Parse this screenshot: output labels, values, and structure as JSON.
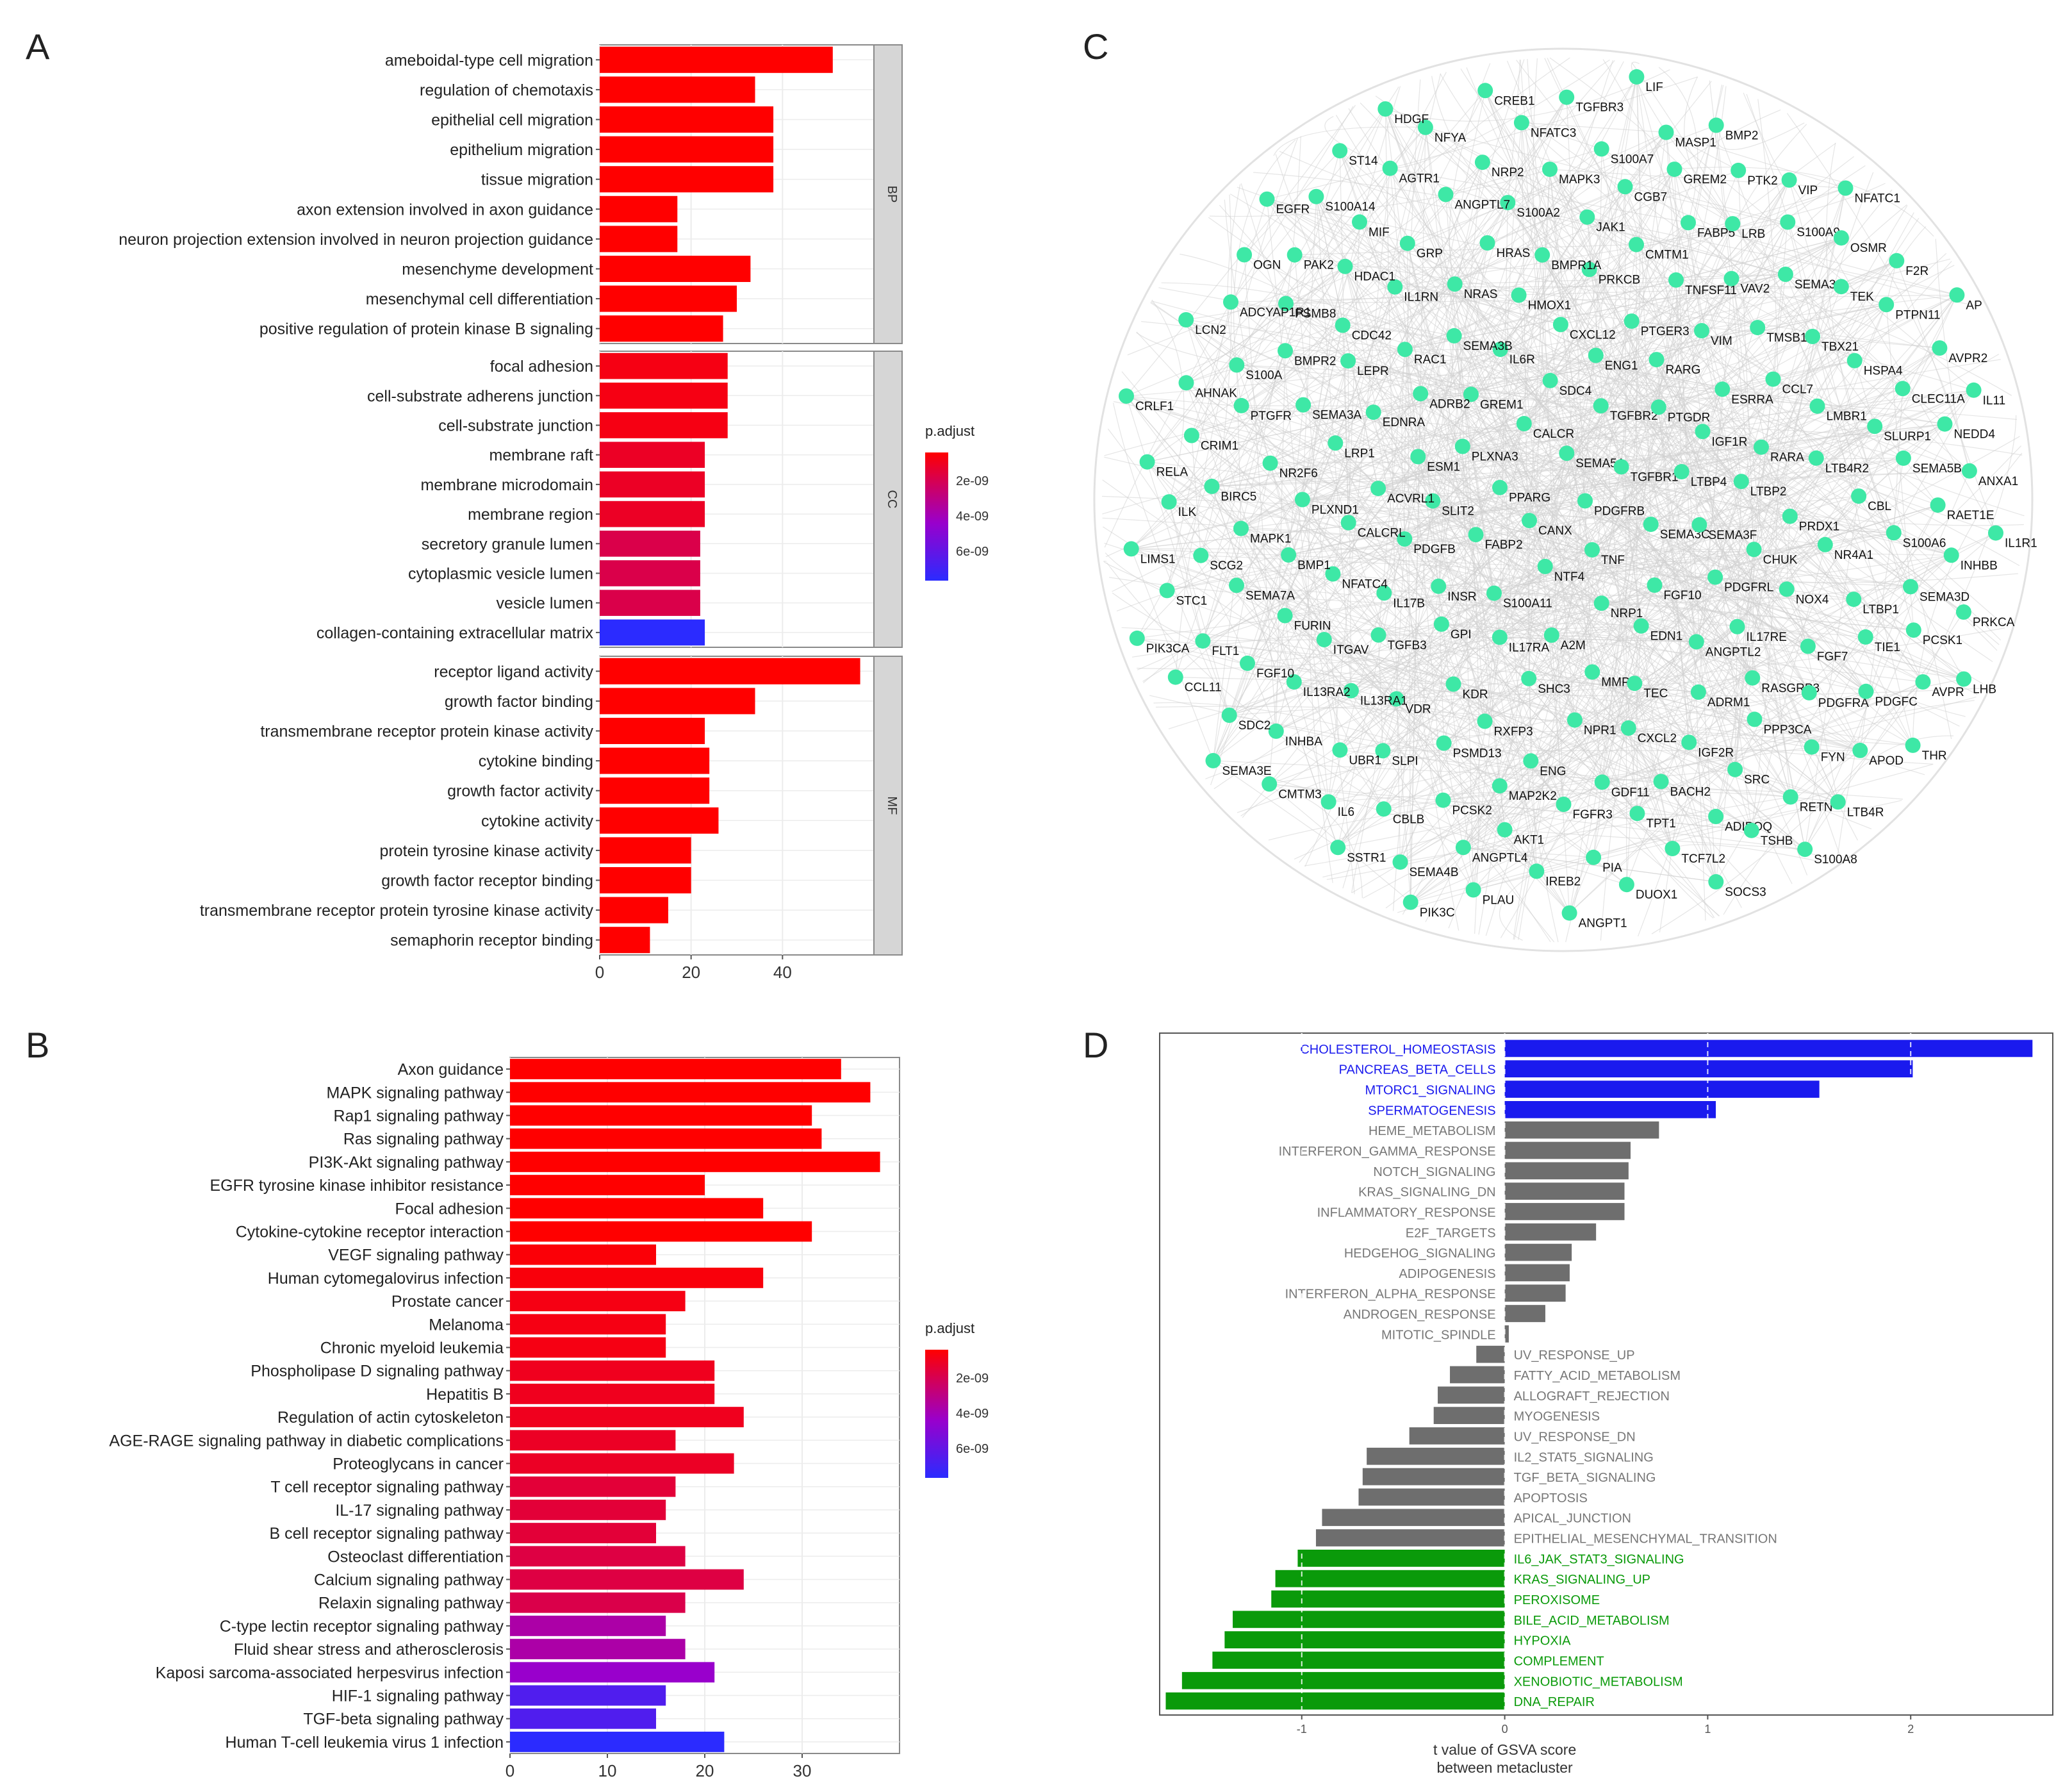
{
  "colors": {
    "grad_red": "#ff0000",
    "grad_mid": "#9900cc",
    "grad_blue": "#2b2bff",
    "gsva_pos": "#1a1aee",
    "gsva_neg": "#0a9a0a",
    "gsva_neutral": "#6e6e6e",
    "node": "#3ee8a6",
    "edge": "#cfcfcf",
    "strip": "#d6d6d6"
  },
  "chart_data": [
    {
      "panel": "A",
      "type": "bar",
      "orientation": "horizontal",
      "xlim": [
        0,
        60
      ],
      "xticks": [
        0,
        20,
        40
      ],
      "legend": {
        "title": "p.adjust",
        "labels": [
          "2e-09",
          "4e-09",
          "6e-09"
        ],
        "placement": "right"
      },
      "facets": [
        {
          "strip": "BP",
          "categories": [
            "ameboidal-type cell migration",
            "regulation of chemotaxis",
            "epithelial cell migration",
            "epithelium migration",
            "tissue migration",
            "axon extension involved in axon guidance",
            "neuron projection extension involved in neuron projection guidance",
            "mesenchyme development",
            "mesenchymal cell differentiation",
            "positive regulation of protein kinase B signaling"
          ],
          "values": [
            51,
            34,
            38,
            38,
            38,
            17,
            17,
            33,
            30,
            27
          ],
          "colors": [
            0,
            0,
            0,
            0,
            0,
            0,
            0,
            0,
            0,
            0
          ]
        },
        {
          "strip": "CC",
          "categories": [
            "focal adhesion",
            "cell-substrate adherens junction",
            "cell-substrate junction",
            "membrane raft",
            "membrane microdomain",
            "membrane region",
            "secretory granule lumen",
            "cytoplasmic vesicle lumen",
            "vesicle lumen",
            "collagen-containing extracellular matrix"
          ],
          "values": [
            28,
            28,
            28,
            23,
            23,
            23,
            22,
            22,
            22,
            23
          ],
          "colors": [
            0.05,
            0.05,
            0.05,
            0.1,
            0.1,
            0.1,
            0.2,
            0.2,
            0.2,
            1
          ]
        },
        {
          "strip": "MF",
          "categories": [
            "receptor ligand activity",
            "growth factor binding",
            "transmembrane receptor protein kinase activity",
            "cytokine binding",
            "growth factor activity",
            "cytokine activity",
            "protein tyrosine kinase activity",
            "growth factor receptor binding",
            "transmembrane receptor protein tyrosine kinase activity",
            "semaphorin receptor binding"
          ],
          "values": [
            57,
            34,
            23,
            24,
            24,
            26,
            20,
            20,
            15,
            11
          ],
          "colors": [
            0,
            0,
            0,
            0,
            0,
            0,
            0,
            0,
            0,
            0
          ]
        }
      ]
    },
    {
      "panel": "B",
      "type": "bar",
      "orientation": "horizontal",
      "xlim": [
        0,
        40
      ],
      "xticks": [
        0,
        10,
        20,
        30
      ],
      "legend": {
        "title": "p.adjust",
        "labels": [
          "2e-09",
          "4e-09",
          "6e-09"
        ],
        "placement": "right"
      },
      "categories": [
        "Axon guidance",
        "MAPK signaling pathway",
        "Rap1 signaling pathway",
        "Ras signaling pathway",
        "PI3K-Akt signaling pathway",
        "EGFR tyrosine kinase inhibitor resistance",
        "Focal adhesion",
        "Cytokine-cytokine receptor interaction",
        "VEGF signaling pathway",
        "Human cytomegalovirus infection",
        "Prostate cancer",
        "Melanoma",
        "Chronic myeloid leukemia",
        "Phospholipase D signaling pathway",
        "Hepatitis B",
        "Regulation of actin cytoskeleton",
        "AGE-RAGE signaling pathway in diabetic complications",
        "Proteoglycans in cancer",
        "T cell receptor signaling pathway",
        "IL-17 signaling pathway",
        "B cell receptor signaling pathway",
        "Osteoclast differentiation",
        "Calcium signaling pathway",
        "Relaxin signaling pathway",
        "C-type lectin receptor signaling pathway",
        "Fluid shear stress and atherosclerosis",
        "Kaposi sarcoma-associated herpesvirus infection",
        "HIF-1 signaling pathway",
        "TGF-beta signaling pathway",
        "Human T-cell leukemia virus 1 infection"
      ],
      "values": [
        34,
        37,
        31,
        32,
        38,
        20,
        26,
        31,
        15,
        26,
        18,
        16,
        16,
        21,
        21,
        24,
        17,
        23,
        17,
        16,
        15,
        18,
        24,
        18,
        16,
        18,
        21,
        16,
        15,
        22
      ],
      "colors": [
        0,
        0,
        0,
        0,
        0,
        0,
        0,
        0,
        0.02,
        0.03,
        0.05,
        0.05,
        0.05,
        0.08,
        0.08,
        0.08,
        0.1,
        0.1,
        0.15,
        0.15,
        0.15,
        0.18,
        0.18,
        0.2,
        0.45,
        0.45,
        0.55,
        0.85,
        0.85,
        1
      ]
    },
    {
      "panel": "C",
      "type": "network",
      "nodes": [
        "PDGFRB",
        "CANX",
        "SEMA5A",
        "TNF",
        "PPARG",
        "TGFBR1",
        "NTF4",
        "CALCR",
        "SEMA3C",
        "FABP2",
        "TGFBR2",
        "NRP1",
        "PLXNA3",
        "LTBP4",
        "S100A11",
        "SDC4",
        "FGF10",
        "SLIT2",
        "PTGDR",
        "A2M",
        "GREM1",
        "SEMA3F",
        "INSR",
        "ENG1",
        "EDN1",
        "ESM1",
        "IGF1R",
        "IL17RA",
        "IL6R",
        "PDGFRL",
        "PDGFB",
        "RARG",
        "MMP9",
        "ADRB2",
        "LTBP2",
        "GPI",
        "CXCL12",
        "ANGPTL2",
        "ACVRL1",
        "ESRRA",
        "SHC3",
        "SEMA3B",
        "CHUK",
        "IL17B",
        "PTGER3",
        "TEC",
        "EDNRA",
        "RARA",
        "KDR",
        "HMOX1",
        "IL17RE",
        "CALCRL",
        "VIM",
        "NPR1",
        "RAC1",
        "PRDX1",
        "TGFB3",
        "PRKCB",
        "ADRM1",
        "LRP1",
        "CCL7",
        "RXFP3",
        "NRAS",
        "NOX4",
        "NFATC4",
        "TNFSF11",
        "CXCL2",
        "LEPR",
        "LTB4R2",
        "VDR",
        "BMPR1A",
        "RASGRP3",
        "PLXND1",
        "TMSB10",
        "ENG",
        "IL1RN",
        "NR4A1",
        "ITGAV",
        "CMTM1",
        "IGF2R",
        "SEMA3A",
        "LMBR1",
        "PSMD13",
        "HRAS",
        "FGF7",
        "BMP1",
        "VAV2",
        "GDF11",
        "CDC42",
        "CBL",
        "IL13RA1",
        "JAK1",
        "PPP3CA",
        "NR2F6",
        "TBX21",
        "MAP2K2",
        "GRP",
        "LTBP1",
        "FURIN",
        "FABP5",
        "BACH2",
        "BMPR2",
        "SLURP1",
        "SLPI",
        "S100A2",
        "PDGFRA",
        "MAPK1",
        "SEMA3G",
        "FGFR3",
        "HDAC1",
        "S100A6",
        "IL13RA2",
        "CGB7",
        "SRC",
        "PTGFR",
        "HSPA4",
        "PCSK2",
        "ANGPTL7",
        "TIE1",
        "SEMA7A",
        "LRB",
        "TPT1",
        "PSMB8",
        "SEMA5B",
        "UBR1",
        "MAPK3",
        "FYN",
        "BIRC5",
        "TEK",
        "AKT1",
        "MIF",
        "SEMA3D",
        "FGF10",
        "GREM2",
        "ADIPOQ",
        "S100A",
        "CLEC11A",
        "CBLB",
        "NRP2",
        "PDGFC",
        "SCG2",
        "S100A9",
        "PIA",
        "PAK2",
        "RAET1E",
        "INHBA",
        "S100A7",
        "RETN",
        "CRIM1",
        "PTPN11",
        "ANGPTL4",
        "AGTR1",
        "PCSK1",
        "FLT1",
        "PTK2",
        "TCF7L2",
        "ADCYAP1R1",
        "NEDD4",
        "IL6",
        "NFATC3",
        "APOD",
        "ILK",
        "OSMR",
        "IREB2",
        "S100A14",
        "INHBB",
        "SDC2",
        "MASP1",
        "TSHB",
        "AHNAK",
        "AVPR2",
        "SEMA4B",
        "NFYA",
        "AVPR",
        "STC1",
        "VIP",
        "DUOX1",
        "OGN",
        "ANXA1",
        "CMTM3",
        "TGFBR3",
        "LTB4R",
        "RELA",
        "F2R",
        "PLAU",
        "ST14",
        "PRKCA",
        "CCL11",
        "BMP2",
        "SOCS3",
        "LCN2",
        "IL11",
        "SSTR1",
        "CREB1",
        "THR",
        "LIMS1",
        "NFATC1",
        "ANGPT1",
        "EGFR",
        "IL1R1",
        "SEMA3E",
        "LIF",
        "S100A8",
        "CRLF1",
        "AP",
        "PIK3C",
        "HDGF",
        "LHB",
        "PIK3CA"
      ],
      "edges": "dense protein-protein interaction network"
    },
    {
      "panel": "D",
      "type": "bar",
      "orientation": "horizontal",
      "xlabel": "t value of GSVA score\nbetween metacluster",
      "xlim": [
        -1.7,
        2.7
      ],
      "xticks": [
        -1,
        0,
        1,
        2
      ],
      "categories": [
        "CHOLESTEROL_HOMEOSTASIS",
        "PANCREAS_BETA_CELLS",
        "MTORC1_SIGNALING",
        "SPERMATOGENESIS",
        "HEME_METABOLISM",
        "INTERFERON_GAMMA_RESPONSE",
        "NOTCH_SIGNALING",
        "KRAS_SIGNALING_DN",
        "INFLAMMATORY_RESPONSE",
        "E2F_TARGETS",
        "HEDGEHOG_SIGNALING",
        "ADIPOGENESIS",
        "INTERFERON_ALPHA_RESPONSE",
        "ANDROGEN_RESPONSE",
        "MITOTIC_SPINDLE",
        "UV_RESPONSE_UP",
        "FATTY_ACID_METABOLISM",
        "ALLOGRAFT_REJECTION",
        "MYOGENESIS",
        "UV_RESPONSE_DN",
        "IL2_STAT5_SIGNALING",
        "TGF_BETA_SIGNALING",
        "APOPTOSIS",
        "APICAL_JUNCTION",
        "EPITHELIAL_MESENCHYMAL_TRANSITION",
        "IL6_JAK_STAT3_SIGNALING",
        "KRAS_SIGNALING_UP",
        "PEROXISOME",
        "BILE_ACID_METABOLISM",
        "HYPOXIA",
        "COMPLEMENT",
        "XENOBIOTIC_METABOLISM",
        "DNA_REPAIR"
      ],
      "values": [
        2.6,
        2.01,
        1.55,
        1.04,
        0.76,
        0.62,
        0.61,
        0.59,
        0.59,
        0.45,
        0.33,
        0.32,
        0.3,
        0.2,
        0.02,
        -0.14,
        -0.27,
        -0.33,
        -0.35,
        -0.47,
        -0.68,
        -0.7,
        -0.72,
        -0.9,
        -0.93,
        -1.02,
        -1.13,
        -1.15,
        -1.34,
        -1.38,
        -1.44,
        -1.59,
        -1.67
      ],
      "groups": [
        "pos",
        "pos",
        "pos",
        "pos",
        "neutral",
        "neutral",
        "neutral",
        "neutral",
        "neutral",
        "neutral",
        "neutral",
        "neutral",
        "neutral",
        "neutral",
        "neutral",
        "neutral",
        "neutral",
        "neutral",
        "neutral",
        "neutral",
        "neutral",
        "neutral",
        "neutral",
        "neutral",
        "neutral",
        "neg",
        "neg",
        "neg",
        "neg",
        "neg",
        "neg",
        "neg",
        "neg"
      ]
    }
  ],
  "panel_letters": [
    "A",
    "B",
    "C",
    "D"
  ]
}
